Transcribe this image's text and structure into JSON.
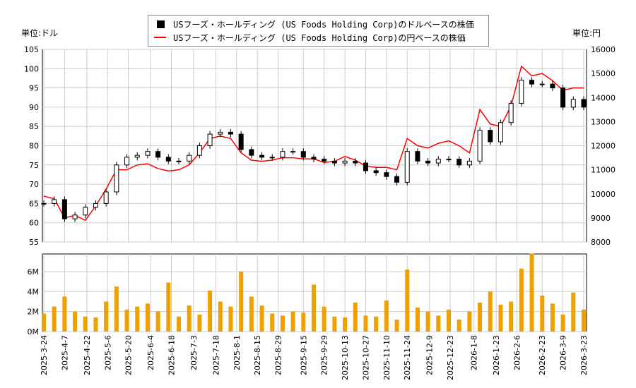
{
  "chart_data": {
    "type": "line",
    "legend": {
      "placement": "top-center",
      "entries": [
        "USフーズ・ホールディング (US Foods Holding Corp)のドルベースの株価",
        "USフーズ・ホールディング (US Foods Holding Corp)の円ベースの株価"
      ]
    },
    "left_unit": "単位:ドル",
    "right_unit": "単位:円",
    "grid": true,
    "left_ylim": [
      55,
      105
    ],
    "left_ticks": [
      "55",
      "60",
      "65",
      "70",
      "75",
      "80",
      "85",
      "90",
      "95",
      "100",
      "105"
    ],
    "right_ylim": [
      8000,
      16000
    ],
    "right_ticks": [
      "8000",
      "9000",
      "10000",
      "11000",
      "12000",
      "13000",
      "14000",
      "15000",
      "16000"
    ],
    "volume_ylim": [
      0,
      7.76
    ],
    "volume_ticks": [
      "0M",
      "2M",
      "4M",
      "6M"
    ],
    "x_ticks": [
      "2025-3-24",
      "2025-4-7",
      "2025-4-22",
      "2025-5-6",
      "2025-5-20",
      "2025-6-4",
      "2025-6-18",
      "2025-7-3",
      "2025-7-18",
      "2025-8-1",
      "2025-8-15",
      "2025-8-29",
      "2025-9-15",
      "2025-9-29",
      "2025-10-13",
      "2025-10-27",
      "2025-11-10",
      "2025-11-24",
      "2025-12-9",
      "2025-12-23",
      "2026-1-8",
      "2026-1-23",
      "2026-2-6",
      "2026-2-23",
      "2026-3-9",
      "2026-3-23"
    ],
    "dates": [
      "2025-3-24",
      "2025-3-31",
      "2025-4-7",
      "2025-4-14",
      "2025-4-21",
      "2025-4-28",
      "2025-5-5",
      "2025-5-12",
      "2025-5-19",
      "2025-5-26",
      "2025-6-2",
      "2025-6-9",
      "2025-6-16",
      "2025-6-23",
      "2025-6-30",
      "2025-7-7",
      "2025-7-14",
      "2025-7-21",
      "2025-7-28",
      "2025-8-4",
      "2025-8-11",
      "2025-8-18",
      "2025-8-25",
      "2025-9-1",
      "2025-9-8",
      "2025-9-15",
      "2025-9-22",
      "2025-9-29",
      "2025-10-6",
      "2025-10-13",
      "2025-10-20",
      "2025-10-27",
      "2025-11-3",
      "2025-11-10",
      "2025-11-17",
      "2025-11-24",
      "2025-12-1",
      "2025-12-8",
      "2025-12-15",
      "2025-12-22",
      "2025-12-29",
      "2026-1-5",
      "2026-1-12",
      "2026-1-19",
      "2026-1-26",
      "2026-2-2",
      "2026-2-9",
      "2026-2-16",
      "2026-2-23",
      "2026-3-2",
      "2026-3-9",
      "2026-3-16",
      "2026-3-23"
    ],
    "series": [
      {
        "name": "USフーズ・ホールディング (US Foods Holding Corp)のドルベースの株価",
        "axis": "left",
        "color": "#000000",
        "values": [
          65,
          66,
          61,
          62,
          64,
          65,
          68,
          75,
          77,
          77.5,
          78.5,
          77,
          76,
          76,
          77.5,
          80,
          83,
          83.5,
          83,
          79,
          77.5,
          77,
          77,
          78.5,
          78.5,
          77,
          76.5,
          76,
          75.5,
          76,
          75.5,
          73.5,
          73,
          72,
          70.5,
          78.5,
          76,
          75.5,
          76.5,
          76.5,
          75,
          76,
          84,
          81,
          86,
          91,
          97,
          96,
          96,
          95,
          90,
          92,
          90
        ]
      },
      {
        "name": "USフーズ・ホールディング (US Foods Holding Corp)の円ベースの株価",
        "axis": "right",
        "color": "#ff0000",
        "values": [
          9900,
          9800,
          9000,
          9100,
          8900,
          9500,
          10200,
          11000,
          11000,
          11200,
          11250,
          11050,
          10950,
          11000,
          11200,
          11700,
          12300,
          12400,
          12300,
          11700,
          11400,
          11350,
          11400,
          11500,
          11500,
          11450,
          11450,
          11300,
          11350,
          11550,
          11400,
          11150,
          11100,
          11100,
          11000,
          12300,
          12000,
          11900,
          12100,
          12200,
          12000,
          11700,
          13500,
          12900,
          12800,
          13650,
          15300,
          14900,
          15000,
          14700,
          14300,
          14400,
          14400
        ]
      }
    ],
    "volume": {
      "unit": "M",
      "color": "#f0a000",
      "values": [
        1.8,
        2.5,
        3.5,
        2.0,
        1.5,
        1.4,
        3.0,
        4.5,
        2.2,
        2.5,
        2.8,
        2.0,
        4.9,
        1.5,
        2.6,
        1.7,
        4.1,
        3.0,
        2.5,
        6.0,
        3.5,
        2.6,
        1.8,
        1.6,
        2.0,
        1.9,
        4.7,
        2.5,
        1.5,
        1.4,
        2.9,
        1.6,
        1.5,
        3.1,
        1.2,
        6.2,
        2.4,
        2.0,
        1.6,
        2.2,
        1.2,
        2.0,
        2.9,
        4.0,
        2.7,
        3.0,
        6.3,
        7.8,
        3.6,
        2.8,
        1.7,
        3.9,
        2.2
      ]
    }
  }
}
